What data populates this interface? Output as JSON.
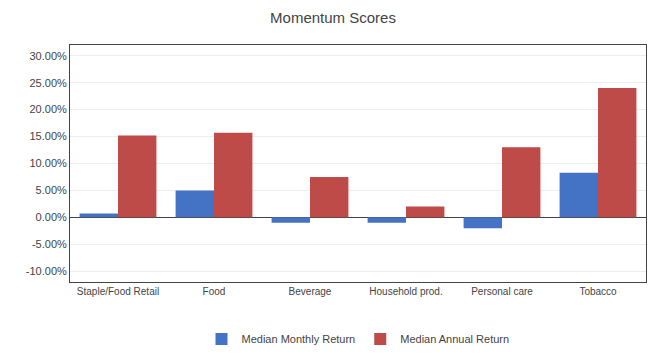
{
  "chart_data": {
    "type": "bar",
    "title": "Momentum Scores",
    "categories": [
      "Staple/Food Retail",
      "Food",
      "Beverage",
      "Household prod.",
      "Personal care",
      "Tobacco"
    ],
    "series": [
      {
        "name": "Median Monthly Return",
        "color": "#4472C4",
        "values": [
          0.007,
          0.05,
          -0.01,
          -0.01,
          -0.02,
          0.083
        ]
      },
      {
        "name": "Median Annual Return",
        "color": "#BE4B48",
        "values": [
          0.152,
          0.157,
          0.075,
          0.02,
          0.13,
          0.24
        ]
      }
    ],
    "ylim": [
      -0.12,
      0.32
    ],
    "yticks": [
      {
        "value": -0.1,
        "label": "-10.00%"
      },
      {
        "value": -0.05,
        "label": "-5.00%"
      },
      {
        "value": 0.0,
        "label": "0.00%"
      },
      {
        "value": 0.05,
        "label": "5.00%"
      },
      {
        "value": 0.1,
        "label": "10.00%"
      },
      {
        "value": 0.15,
        "label": "15.00%"
      },
      {
        "value": 0.2,
        "label": "20.00%"
      },
      {
        "value": 0.25,
        "label": "25.00%"
      },
      {
        "value": 0.3,
        "label": "30.00%"
      }
    ],
    "grid": true,
    "legend": "bottom"
  }
}
